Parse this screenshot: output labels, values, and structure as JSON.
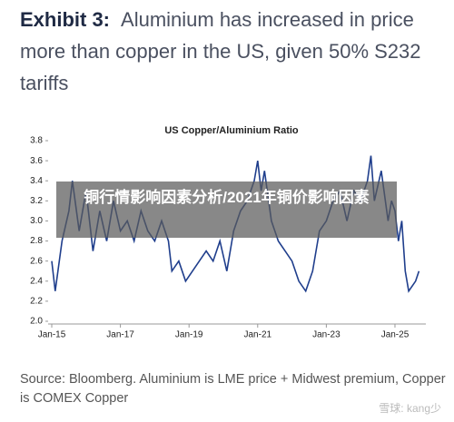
{
  "header": {
    "label": "Exhibit 3:",
    "title": "Aluminium has increased in price more than copper in the US, given 50% S232 tariffs"
  },
  "chart_data": {
    "type": "line",
    "title": "US Copper/Aluminium Ratio",
    "x": [
      2015.0,
      2015.1,
      2015.3,
      2015.5,
      2015.6,
      2015.8,
      2016.0,
      2016.2,
      2016.4,
      2016.6,
      2016.8,
      2017.0,
      2017.2,
      2017.4,
      2017.6,
      2017.8,
      2018.0,
      2018.2,
      2018.4,
      2018.5,
      2018.7,
      2018.9,
      2019.1,
      2019.3,
      2019.5,
      2019.7,
      2019.9,
      2020.1,
      2020.3,
      2020.5,
      2020.7,
      2020.9,
      2021.0,
      2021.1,
      2021.2,
      2021.4,
      2021.6,
      2021.8,
      2022.0,
      2022.2,
      2022.4,
      2022.6,
      2022.8,
      2023.0,
      2023.2,
      2023.4,
      2023.6,
      2023.8,
      2024.0,
      2024.2,
      2024.3,
      2024.4,
      2024.6,
      2024.8,
      2024.9,
      2025.0,
      2025.1,
      2025.2,
      2025.3,
      2025.4,
      2025.6,
      2025.7
    ],
    "series": [
      {
        "name": "Copper/Aluminium",
        "color": "#1f3e8c",
        "values": [
          2.6,
          2.3,
          2.8,
          3.1,
          3.4,
          2.9,
          3.3,
          2.7,
          3.1,
          2.8,
          3.2,
          2.9,
          3.0,
          2.8,
          3.1,
          2.9,
          2.8,
          3.0,
          2.8,
          2.5,
          2.6,
          2.4,
          2.5,
          2.6,
          2.7,
          2.6,
          2.8,
          2.5,
          2.9,
          3.1,
          3.2,
          3.4,
          3.6,
          3.3,
          3.5,
          3.0,
          2.8,
          2.7,
          2.6,
          2.4,
          2.3,
          2.5,
          2.9,
          3.0,
          3.2,
          3.3,
          3.0,
          3.3,
          3.2,
          3.4,
          3.65,
          3.2,
          3.5,
          3.0,
          3.2,
          3.1,
          2.8,
          3.0,
          2.5,
          2.3,
          2.4,
          2.5
        ]
      }
    ],
    "xlim": [
      2015,
      2025.9
    ],
    "xticks": [
      {
        "value": 2015,
        "label": "Jan-15"
      },
      {
        "value": 2017,
        "label": "Jan-17"
      },
      {
        "value": 2019,
        "label": "Jan-19"
      },
      {
        "value": 2021,
        "label": "Jan-21"
      },
      {
        "value": 2023,
        "label": "Jan-23"
      },
      {
        "value": 2025,
        "label": "Jan-25"
      }
    ],
    "ylim": [
      2.0,
      3.8
    ],
    "yticks": [
      {
        "value": 2.0,
        "label": "2.0"
      },
      2.2,
      2.4,
      2.6,
      2.8,
      {
        "value": 3.0,
        "label": "3.0"
      },
      3.2,
      3.4,
      3.6,
      3.8
    ]
  },
  "overlay": "铜行情影响因素分析/2021年铜价影响因素",
  "source": "Source: Bloomberg. Aluminium is LME price + Midwest premium, Copper is COMEX Copper",
  "watermark": "雪球: kang少"
}
